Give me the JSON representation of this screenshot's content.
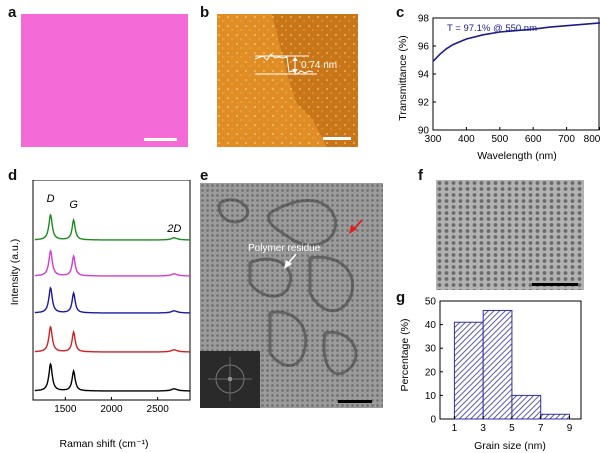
{
  "panels": {
    "a": {
      "label": "a"
    },
    "b": {
      "label": "b",
      "step_annotation": "0.74 nm"
    },
    "c": {
      "label": "c"
    },
    "d": {
      "label": "d"
    },
    "e": {
      "label": "e",
      "annotation": "Polymer residue"
    },
    "f": {
      "label": "f"
    },
    "g": {
      "label": "g"
    }
  },
  "colors": {
    "optical_pink": "#f46bd8",
    "afm_orange": "#d8851f",
    "transmittance_line": "#1c1c8c",
    "raman": [
      "#1f8a1f",
      "#d23cd0",
      "#1a1aa0",
      "#d02020",
      "#000000"
    ],
    "hist_hatch": "#3030a0",
    "arrow_red": "#e02020"
  },
  "chart_data": [
    {
      "panel": "c",
      "type": "line",
      "annotation": "T = 97.1% @ 550 nm",
      "xlabel": "Wavelength (nm)",
      "ylabel": "Transmittance (%)",
      "xlim": [
        300,
        800
      ],
      "ylim": [
        90,
        98
      ],
      "xticks": [
        300,
        400,
        500,
        600,
        700,
        800
      ],
      "yticks": [
        90,
        92,
        94,
        96,
        98
      ],
      "x": [
        300,
        320,
        340,
        360,
        380,
        400,
        450,
        500,
        550,
        600,
        650,
        700,
        750,
        800
      ],
      "y": [
        94.9,
        95.4,
        95.8,
        96.1,
        96.3,
        96.5,
        96.8,
        97.0,
        97.1,
        97.2,
        97.35,
        97.45,
        97.55,
        97.65
      ]
    },
    {
      "panel": "d",
      "type": "line",
      "xlabel": "Raman shift (cm⁻¹)",
      "ylabel": "Intensity (a.u.)",
      "xlim": [
        1150,
        2850
      ],
      "xticks": [
        1500,
        2000,
        2500
      ],
      "peak_labels": [
        "D",
        "G",
        "2D"
      ],
      "peaks": {
        "D": 1340,
        "G": 1590,
        "2D": 2680
      },
      "series": [
        {
          "peak_intensities": {
            "D": 0.7,
            "G": 0.55,
            "2D": 0.06
          }
        },
        {
          "peak_intensities": {
            "D": 0.7,
            "G": 0.55,
            "2D": 0.06
          }
        },
        {
          "peak_intensities": {
            "D": 0.7,
            "G": 0.55,
            "2D": 0.06
          }
        },
        {
          "peak_intensities": {
            "D": 0.7,
            "G": 0.55,
            "2D": 0.06
          }
        },
        {
          "peak_intensities": {
            "D": 0.75,
            "G": 0.55,
            "2D": 0.06
          }
        }
      ]
    },
    {
      "panel": "g",
      "type": "bar",
      "xlabel": "Grain size (nm)",
      "ylabel": "Percentage (%)",
      "bin_edges": [
        1,
        3,
        5,
        7,
        9
      ],
      "categories": [
        "1-3",
        "3-5",
        "5-7",
        "7-9"
      ],
      "values": [
        41,
        46,
        10,
        2
      ],
      "xticks": [
        1,
        3,
        5,
        7,
        9
      ],
      "yticks": [
        0,
        10,
        20,
        30,
        40,
        50
      ],
      "ylim": [
        0,
        50
      ]
    }
  ]
}
